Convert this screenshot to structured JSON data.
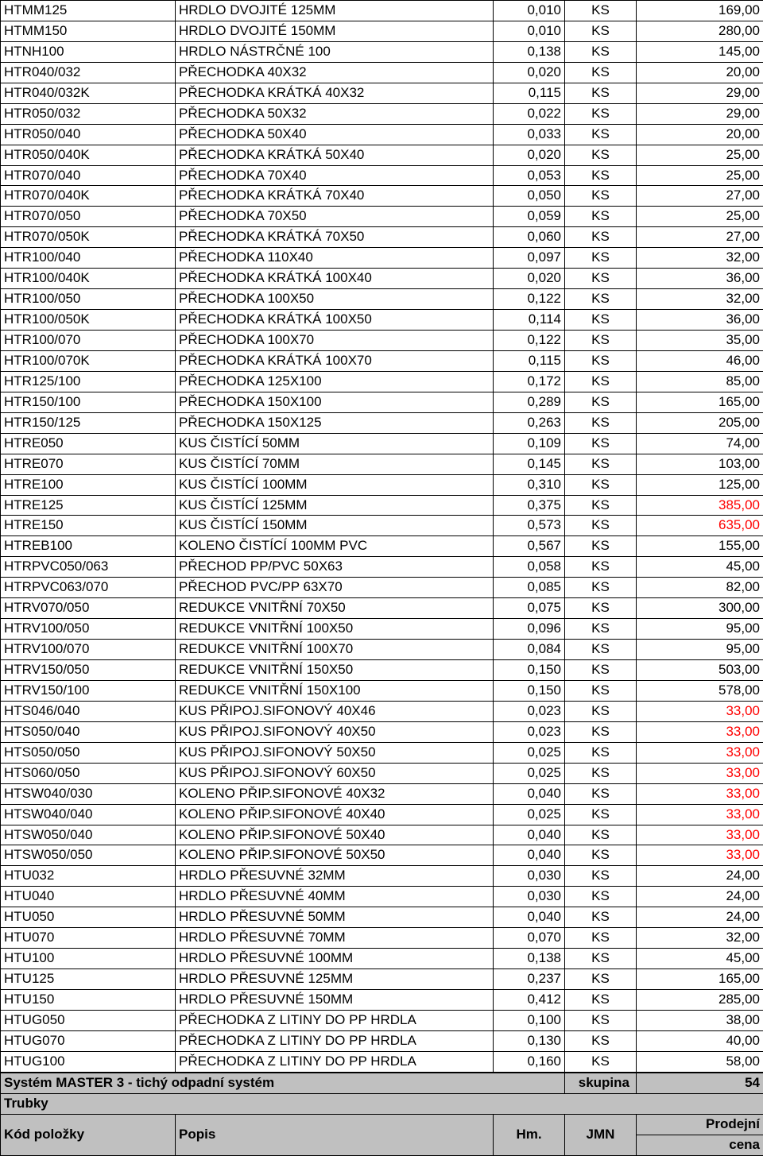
{
  "columns": {
    "code": "Kód položky",
    "desc": "Popis",
    "hm": "Hm.",
    "jmn": "JMN",
    "price": "Prodejní",
    "price2": "cena"
  },
  "section": {
    "title": "Systém MASTER 3 - tichý odpadní systém",
    "skupina_label": "skupina",
    "skupina_num": "54",
    "subtitle": "Trubky"
  },
  "rows": [
    {
      "code": "HTMM125",
      "desc": "HRDLO DVOJITÉ 125MM",
      "hm": "0,010",
      "jmn": "KS",
      "price": "169,00",
      "red": false
    },
    {
      "code": "HTMM150",
      "desc": "HRDLO DVOJITÉ 150MM",
      "hm": "0,010",
      "jmn": "KS",
      "price": "280,00",
      "red": false
    },
    {
      "code": "HTNH100",
      "desc": "HRDLO NÁSTRČNÉ 100",
      "hm": "0,138",
      "jmn": "KS",
      "price": "145,00",
      "red": false
    },
    {
      "code": "HTR040/032",
      "desc": "PŘECHODKA 40X32",
      "hm": "0,020",
      "jmn": "KS",
      "price": "20,00",
      "red": false
    },
    {
      "code": "HTR040/032K",
      "desc": "PŘECHODKA KRÁTKÁ 40X32",
      "hm": "0,115",
      "jmn": "KS",
      "price": "29,00",
      "red": false
    },
    {
      "code": "HTR050/032",
      "desc": "PŘECHODKA 50X32",
      "hm": "0,022",
      "jmn": "KS",
      "price": "29,00",
      "red": false
    },
    {
      "code": "HTR050/040",
      "desc": "PŘECHODKA 50X40",
      "hm": "0,033",
      "jmn": "KS",
      "price": "20,00",
      "red": false
    },
    {
      "code": "HTR050/040K",
      "desc": "PŘECHODKA KRÁTKÁ 50X40",
      "hm": "0,020",
      "jmn": "KS",
      "price": "25,00",
      "red": false
    },
    {
      "code": "HTR070/040",
      "desc": "PŘECHODKA 70X40",
      "hm": "0,053",
      "jmn": "KS",
      "price": "25,00",
      "red": false
    },
    {
      "code": "HTR070/040K",
      "desc": "PŘECHODKA KRÁTKÁ 70X40",
      "hm": "0,050",
      "jmn": "KS",
      "price": "27,00",
      "red": false
    },
    {
      "code": "HTR070/050",
      "desc": "PŘECHODKA 70X50",
      "hm": "0,059",
      "jmn": "KS",
      "price": "25,00",
      "red": false
    },
    {
      "code": "HTR070/050K",
      "desc": "PŘECHODKA KRÁTKÁ 70X50",
      "hm": "0,060",
      "jmn": "KS",
      "price": "27,00",
      "red": false
    },
    {
      "code": "HTR100/040",
      "desc": "PŘECHODKA 110X40",
      "hm": "0,097",
      "jmn": "KS",
      "price": "32,00",
      "red": false
    },
    {
      "code": "HTR100/040K",
      "desc": "PŘECHODKA KRÁTKÁ 100X40",
      "hm": "0,020",
      "jmn": "KS",
      "price": "36,00",
      "red": false
    },
    {
      "code": "HTR100/050",
      "desc": "PŘECHODKA 100X50",
      "hm": "0,122",
      "jmn": "KS",
      "price": "32,00",
      "red": false
    },
    {
      "code": "HTR100/050K",
      "desc": "PŘECHODKA KRÁTKÁ 100X50",
      "hm": "0,114",
      "jmn": "KS",
      "price": "36,00",
      "red": false
    },
    {
      "code": "HTR100/070",
      "desc": "PŘECHODKA 100X70",
      "hm": "0,122",
      "jmn": "KS",
      "price": "35,00",
      "red": false
    },
    {
      "code": "HTR100/070K",
      "desc": "PŘECHODKA KRÁTKÁ 100X70",
      "hm": "0,115",
      "jmn": "KS",
      "price": "46,00",
      "red": false
    },
    {
      "code": "HTR125/100",
      "desc": "PŘECHODKA 125X100",
      "hm": "0,172",
      "jmn": "KS",
      "price": "85,00",
      "red": false
    },
    {
      "code": "HTR150/100",
      "desc": "PŘECHODKA 150X100",
      "hm": "0,289",
      "jmn": "KS",
      "price": "165,00",
      "red": false
    },
    {
      "code": "HTR150/125",
      "desc": "PŘECHODKA 150X125",
      "hm": "0,263",
      "jmn": "KS",
      "price": "205,00",
      "red": false
    },
    {
      "code": "HTRE050",
      "desc": "KUS ČISTÍCÍ 50MM",
      "hm": "0,109",
      "jmn": "KS",
      "price": "74,00",
      "red": false
    },
    {
      "code": "HTRE070",
      "desc": "KUS ČISTÍCÍ 70MM",
      "hm": "0,145",
      "jmn": "KS",
      "price": "103,00",
      "red": false
    },
    {
      "code": "HTRE100",
      "desc": "KUS ČISTÍCÍ 100MM",
      "hm": "0,310",
      "jmn": "KS",
      "price": "125,00",
      "red": false
    },
    {
      "code": "HTRE125",
      "desc": "KUS ČISTÍCÍ 125MM",
      "hm": "0,375",
      "jmn": "KS",
      "price": "385,00",
      "red": true
    },
    {
      "code": "HTRE150",
      "desc": "KUS ČISTÍCÍ 150MM",
      "hm": "0,573",
      "jmn": "KS",
      "price": "635,00",
      "red": true
    },
    {
      "code": "HTREB100",
      "desc": "KOLENO ČISTÍCÍ 100MM PVC",
      "hm": "0,567",
      "jmn": "KS",
      "price": "155,00",
      "red": false
    },
    {
      "code": "HTRPVC050/063",
      "desc": "PŘECHOD PP/PVC 50X63",
      "hm": "0,058",
      "jmn": "KS",
      "price": "45,00",
      "red": false
    },
    {
      "code": "HTRPVC063/070",
      "desc": "PŘECHOD PVC/PP 63X70",
      "hm": "0,085",
      "jmn": "KS",
      "price": "82,00",
      "red": false
    },
    {
      "code": "HTRV070/050",
      "desc": "REDUKCE VNITŘNÍ 70X50",
      "hm": "0,075",
      "jmn": "KS",
      "price": "300,00",
      "red": false
    },
    {
      "code": "HTRV100/050",
      "desc": "REDUKCE VNITŘNÍ 100X50",
      "hm": "0,096",
      "jmn": "KS",
      "price": "95,00",
      "red": false
    },
    {
      "code": "HTRV100/070",
      "desc": "REDUKCE VNITŘNÍ 100X70",
      "hm": "0,084",
      "jmn": "KS",
      "price": "95,00",
      "red": false
    },
    {
      "code": "HTRV150/050",
      "desc": "REDUKCE VNITŘNÍ 150X50",
      "hm": "0,150",
      "jmn": "KS",
      "price": "503,00",
      "red": false
    },
    {
      "code": "HTRV150/100",
      "desc": "REDUKCE VNITŘNÍ 150X100",
      "hm": "0,150",
      "jmn": "KS",
      "price": "578,00",
      "red": false
    },
    {
      "code": "HTS046/040",
      "desc": "KUS PŘIPOJ.SIFONOVÝ 40X46",
      "hm": "0,023",
      "jmn": "KS",
      "price": "33,00",
      "red": true
    },
    {
      "code": "HTS050/040",
      "desc": "KUS PŘIPOJ.SIFONOVÝ 40X50",
      "hm": "0,023",
      "jmn": "KS",
      "price": "33,00",
      "red": true
    },
    {
      "code": "HTS050/050",
      "desc": "KUS PŘIPOJ.SIFONOVÝ 50X50",
      "hm": "0,025",
      "jmn": "KS",
      "price": "33,00",
      "red": true
    },
    {
      "code": "HTS060/050",
      "desc": "KUS PŘIPOJ.SIFONOVÝ 60X50",
      "hm": "0,025",
      "jmn": "KS",
      "price": "33,00",
      "red": true
    },
    {
      "code": "HTSW040/030",
      "desc": "KOLENO PŘIP.SIFONOVÉ 40X32",
      "hm": "0,040",
      "jmn": "KS",
      "price": "33,00",
      "red": true
    },
    {
      "code": "HTSW040/040",
      "desc": "KOLENO PŘIP.SIFONOVÉ 40X40",
      "hm": "0,025",
      "jmn": "KS",
      "price": "33,00",
      "red": true
    },
    {
      "code": "HTSW050/040",
      "desc": "KOLENO PŘIP.SIFONOVÉ 50X40",
      "hm": "0,040",
      "jmn": "KS",
      "price": "33,00",
      "red": true
    },
    {
      "code": "HTSW050/050",
      "desc": "KOLENO PŘIP.SIFONOVÉ 50X50",
      "hm": "0,040",
      "jmn": "KS",
      "price": "33,00",
      "red": true
    },
    {
      "code": "HTU032",
      "desc": "HRDLO PŘESUVNÉ 32MM",
      "hm": "0,030",
      "jmn": "KS",
      "price": "24,00",
      "red": false
    },
    {
      "code": "HTU040",
      "desc": "HRDLO PŘESUVNÉ 40MM",
      "hm": "0,030",
      "jmn": "KS",
      "price": "24,00",
      "red": false
    },
    {
      "code": "HTU050",
      "desc": "HRDLO PŘESUVNÉ 50MM",
      "hm": "0,040",
      "jmn": "KS",
      "price": "24,00",
      "red": false
    },
    {
      "code": "HTU070",
      "desc": "HRDLO PŘESUVNÉ 70MM",
      "hm": "0,070",
      "jmn": "KS",
      "price": "32,00",
      "red": false
    },
    {
      "code": "HTU100",
      "desc": "HRDLO PŘESUVNÉ 100MM",
      "hm": "0,138",
      "jmn": "KS",
      "price": "45,00",
      "red": false
    },
    {
      "code": "HTU125",
      "desc": "HRDLO PŘESUVNÉ 125MM",
      "hm": "0,237",
      "jmn": "KS",
      "price": "165,00",
      "red": false
    },
    {
      "code": "HTU150",
      "desc": "HRDLO PŘESUVNÉ 150MM",
      "hm": "0,412",
      "jmn": "KS",
      "price": "285,00",
      "red": false
    },
    {
      "code": "HTUG050",
      "desc": "PŘECHODKA Z LITINY DO PP HRDLA",
      "hm": "0,100",
      "jmn": "KS",
      "price": "38,00",
      "red": false
    },
    {
      "code": "HTUG070",
      "desc": "PŘECHODKA Z LITINY DO PP HRDLA",
      "hm": "0,130",
      "jmn": "KS",
      "price": "40,00",
      "red": false
    },
    {
      "code": "HTUG100",
      "desc": "PŘECHODKA Z LITINY DO PP HRDLA",
      "hm": "0,160",
      "jmn": "KS",
      "price": "58,00",
      "red": false
    }
  ]
}
